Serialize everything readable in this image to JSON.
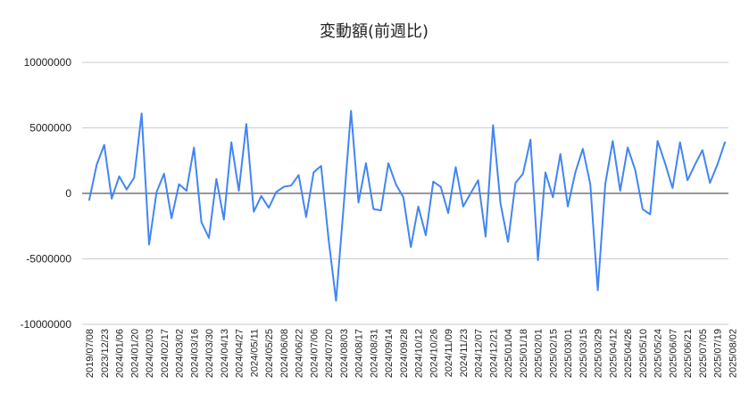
{
  "chart_data": {
    "type": "line",
    "title": "変動額(前週比)",
    "xlabel": "",
    "ylabel": "",
    "ylim": [
      -10000000,
      10000000
    ],
    "yticks": [
      10000000,
      5000000,
      0,
      -5000000,
      -10000000
    ],
    "ytick_labels": [
      "10000000",
      "5000000",
      "0",
      "-5000000",
      "-10000000"
    ],
    "grid": true,
    "legend": "none",
    "line_color": "#4285f4",
    "xtick_labels": [
      "2019/07/08",
      "2023/12/23",
      "2024/01/06",
      "2024/01/20",
      "2024/02/03",
      "2024/02/17",
      "2024/03/02",
      "2024/03/16",
      "2024/03/30",
      "2024/04/13",
      "2024/04/27",
      "2024/05/11",
      "2024/05/25",
      "2024/06/08",
      "2024/06/22",
      "2024/07/06",
      "2024/07/20",
      "2024/08/03",
      "2024/08/17",
      "2024/08/31",
      "2024/09/14",
      "2024/09/28",
      "2024/10/12",
      "2024/10/26",
      "2024/11/09",
      "2024/11/23",
      "2024/12/07",
      "2024/12/21",
      "2025/01/04",
      "2025/01/18",
      "2025/02/01",
      "2025/02/15",
      "2025/03/01",
      "2025/03/15",
      "2025/03/29",
      "2025/04/12",
      "2025/04/26",
      "2025/05/10",
      "2025/05/24",
      "2025/06/07",
      "2025/06/21",
      "2025/07/05",
      "2025/07/19",
      "2025/08/02"
    ],
    "values": [
      -500000,
      2200000,
      3700000,
      -400000,
      1300000,
      300000,
      1200000,
      6100000,
      -3900000,
      100000,
      1500000,
      -1900000,
      700000,
      200000,
      3500000,
      -2200000,
      -3400000,
      1100000,
      -2000000,
      3900000,
      200000,
      5300000,
      -1400000,
      -200000,
      -1100000,
      100000,
      500000,
      600000,
      1400000,
      -1800000,
      1600000,
      2100000,
      -3500000,
      -8200000,
      -1100000,
      6300000,
      -700000,
      2300000,
      -1200000,
      -1300000,
      2300000,
      700000,
      -300000,
      -4100000,
      -1000000,
      -3200000,
      900000,
      500000,
      -1500000,
      2000000,
      -1000000,
      0,
      1000000,
      -3300000,
      5200000,
      -800000,
      -3700000,
      800000,
      1500000,
      4100000,
      -5100000,
      1600000,
      -300000,
      3000000,
      -1000000,
      1600000,
      3400000,
      700000,
      -7400000,
      700000,
      4000000,
      200000,
      3500000,
      1800000,
      -1200000,
      -1600000,
      4000000,
      2300000,
      400000,
      3900000,
      1000000,
      2200000,
      3300000,
      800000,
      2200000,
      3900000
    ]
  }
}
